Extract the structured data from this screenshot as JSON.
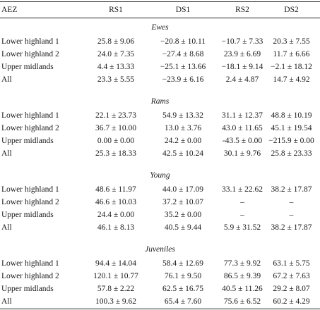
{
  "headers": [
    "AEZ",
    "RS1",
    "DS1",
    "RS2",
    "DS2"
  ],
  "sections": [
    {
      "title": "Ewes",
      "rows": [
        [
          "Lower highland 1",
          "25.8 ± 9.06",
          "−20.8 ± 10.11",
          "−10.7 ± 7.33",
          "20.3 ± 7.55"
        ],
        [
          "Lower highland 2",
          "24.0 ± 7.35",
          "−27.4 ± 8.68",
          "23.9 ± 6.69",
          "11.7 ± 6.66"
        ],
        [
          "Upper midlands",
          "4.4 ± 13.33",
          "−25.1 ± 13.66",
          "−18.1 ± 9.14",
          "−2.1 ± 18.12"
        ],
        [
          "All",
          "23.3 ± 5.55",
          "−23.9 ± 6.16",
          "2.4 ± 4.87",
          "14.7 ± 4.92"
        ]
      ]
    },
    {
      "title": "Rams",
      "rows": [
        [
          "Lower highland 1",
          "22.1 ± 23.73",
          "54.9 ± 13.32",
          "31.1 ± 12.37",
          "48.8 ± 10.19"
        ],
        [
          "Lower highland 2",
          "36.7 ± 10.00",
          "13.0 ± 3.76",
          "43.0 ± 11.65",
          "45.1 ± 19.54"
        ],
        [
          "Upper midlands",
          "0.00 ± 0.00",
          "24.2 ± 0.00",
          "-43.5 ± 0.00",
          "−215.9 ± 0.00"
        ],
        [
          "All",
          "25.3 ± 18.33",
          "42.5 ± 10.24",
          "30.1 ± 9.76",
          "25.8 ± 23.33"
        ]
      ]
    },
    {
      "title": "Young",
      "rows": [
        [
          "Lower highland 1",
          "48.6 ± 11.97",
          "44.0 ± 17.09",
          "33.1 ± 22.62",
          "38.2 ± 17.87"
        ],
        [
          "Lower highland 2",
          "46.6 ± 10.03",
          "37.2 ± 10.07",
          "–",
          "–"
        ],
        [
          "Upper midlands",
          "24.4 ± 0.00",
          "35.2 ± 0.00",
          "–",
          "–"
        ],
        [
          "All",
          "46.1 ± 8.13",
          "40.5 ± 9.44",
          "5.9 ± 31.52",
          "38.2 ± 17.87"
        ]
      ]
    },
    {
      "title": "Juveniles",
      "rows": [
        [
          "Lower highland 1",
          "94.4 ± 14.04",
          "58.4 ± 12.69",
          "77.3 ± 9.92",
          "63.1 ± 5.75"
        ],
        [
          "Lower highland 2",
          "120.1 ± 10.77",
          "76.1 ± 9.50",
          "86.5 ± 9.39",
          "67.2 ± 7.63"
        ],
        [
          "Upper midlands",
          "57.8 ± 2.22",
          "62.5 ± 16.75",
          "40.5 ± 11.26",
          "29.2 ± 8.07"
        ],
        [
          "All",
          "100.3 ± 9.62",
          "65.4 ± 7.60",
          "75.6 ± 6.52",
          "60.2 ± 4.29"
        ]
      ]
    }
  ]
}
